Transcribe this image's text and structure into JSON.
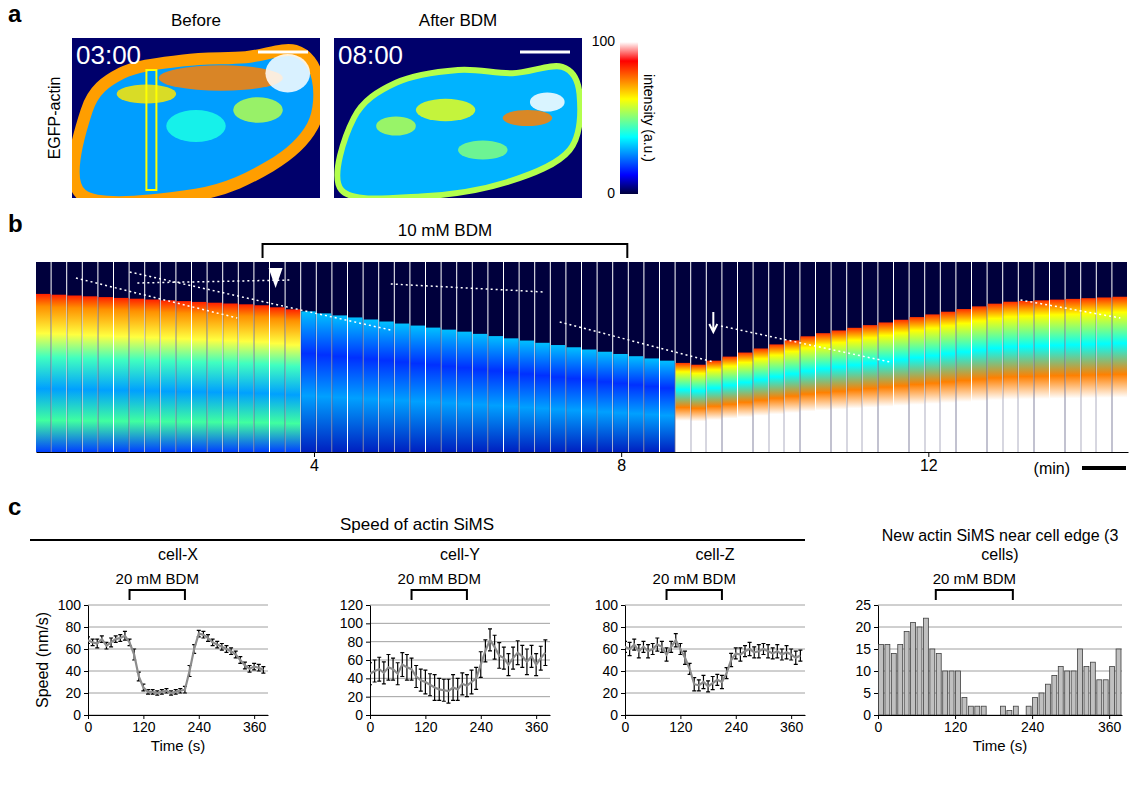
{
  "chart_data": [
    {
      "type": "image",
      "panel_label": "a",
      "ylabel": "EGFP-actin",
      "images": [
        {
          "title": "Before",
          "timestamp": "03:00"
        },
        {
          "title": "After BDM",
          "timestamp": "08:00"
        }
      ],
      "colorbar": {
        "label": "intensity (a.u.)",
        "range": [
          0,
          100
        ],
        "ticks": [
          0,
          100
        ]
      }
    },
    {
      "type": "kymograph",
      "panel_label": "b",
      "xlim": [
        0.38,
        14.6
      ],
      "xticks": [
        4,
        8,
        12
      ],
      "xlabel": "(min)",
      "annotations": [
        {
          "text": "10 mM BDM",
          "x": [
            3.33,
            8.08
          ]
        }
      ]
    },
    {
      "type": "line",
      "panel_label": "c",
      "supertitle": "Speed of actin SiMS",
      "title": "cell-X",
      "xlabel": "Time (s)",
      "ylabel": "Speed (nm/s)",
      "x": [
        0,
        10,
        20,
        30,
        40,
        50,
        60,
        70,
        80,
        90,
        100,
        110,
        120,
        130,
        140,
        150,
        160,
        170,
        180,
        190,
        200,
        210,
        220,
        230,
        240,
        250,
        260,
        270,
        280,
        290,
        300,
        310,
        320,
        330,
        340,
        350,
        360,
        370,
        380
      ],
      "values": [
        68,
        66,
        65,
        69,
        63,
        66,
        69,
        70,
        72,
        66,
        55,
        35,
        25,
        21,
        21,
        20,
        21,
        22,
        20,
        21,
        22,
        23,
        40,
        60,
        74,
        73,
        70,
        66,
        64,
        62,
        60,
        58,
        55,
        50,
        45,
        42,
        44,
        43,
        41
      ],
      "errors": [
        3,
        3,
        4,
        3,
        3,
        4,
        3,
        3,
        4,
        3,
        5,
        4,
        3,
        2,
        2,
        2,
        2,
        2,
        2,
        2,
        2,
        3,
        5,
        4,
        3,
        3,
        3,
        3,
        3,
        3,
        3,
        3,
        3,
        3,
        3,
        3,
        3,
        3,
        3
      ],
      "color": "#8c8c8c",
      "xlim": [
        0,
        390
      ],
      "xticks": [
        0,
        120,
        240,
        360
      ],
      "ylim": [
        0,
        100
      ],
      "yticks": [
        0,
        20,
        40,
        60,
        80,
        100
      ],
      "grid": true,
      "annotations": [
        {
          "text": "20 mM BDM",
          "x": [
            90,
            210
          ]
        }
      ]
    },
    {
      "type": "line",
      "title": "cell-Y",
      "x": [
        0,
        10,
        20,
        30,
        40,
        50,
        60,
        70,
        80,
        90,
        100,
        110,
        120,
        130,
        140,
        150,
        160,
        170,
        180,
        190,
        200,
        210,
        220,
        230,
        240,
        250,
        260,
        270,
        280,
        290,
        300,
        310,
        320,
        330,
        340,
        350,
        360,
        370,
        380
      ],
      "values": [
        45,
        48,
        50,
        46,
        52,
        50,
        45,
        55,
        52,
        50,
        42,
        38,
        36,
        33,
        30,
        28,
        27,
        26,
        30,
        28,
        34,
        32,
        36,
        40,
        55,
        70,
        82,
        74,
        65,
        62,
        55,
        62,
        68,
        64,
        58,
        64,
        55,
        62,
        68
      ],
      "errors": [
        12,
        12,
        13,
        12,
        14,
        12,
        12,
        13,
        14,
        12,
        12,
        12,
        13,
        12,
        14,
        12,
        12,
        13,
        14,
        12,
        12,
        12,
        13,
        12,
        14,
        12,
        12,
        13,
        14,
        12,
        12,
        12,
        13,
        12,
        14,
        12,
        12,
        13,
        14
      ],
      "color": "#8c8c8c",
      "xlim": [
        0,
        390
      ],
      "xticks": [
        0,
        120,
        240,
        360
      ],
      "ylim": [
        0,
        120
      ],
      "yticks": [
        0,
        20,
        40,
        60,
        80,
        100,
        120
      ],
      "grid": true,
      "annotations": [
        {
          "text": "20 mM BDM",
          "x": [
            90,
            210
          ]
        }
      ]
    },
    {
      "type": "line",
      "title": "cell-Z",
      "x": [
        0,
        10,
        20,
        30,
        40,
        50,
        60,
        70,
        80,
        90,
        100,
        110,
        120,
        130,
        140,
        150,
        160,
        170,
        180,
        190,
        200,
        210,
        220,
        230,
        240,
        250,
        260,
        270,
        280,
        290,
        300,
        310,
        320,
        330,
        340,
        350,
        360,
        370,
        380
      ],
      "values": [
        62,
        60,
        64,
        58,
        62,
        58,
        60,
        64,
        62,
        55,
        62,
        68,
        60,
        52,
        42,
        28,
        27,
        30,
        26,
        29,
        32,
        30,
        38,
        50,
        56,
        55,
        58,
        60,
        57,
        58,
        60,
        58,
        56,
        58,
        55,
        57,
        55,
        52,
        54
      ],
      "errors": [
        5,
        6,
        5,
        6,
        5,
        6,
        5,
        6,
        5,
        6,
        5,
        6,
        5,
        6,
        5,
        6,
        5,
        6,
        5,
        6,
        5,
        6,
        5,
        6,
        5,
        6,
        5,
        6,
        5,
        6,
        5,
        6,
        5,
        6,
        5,
        6,
        5,
        6,
        5
      ],
      "color": "#8c8c8c",
      "xlim": [
        0,
        390
      ],
      "xticks": [
        0,
        120,
        240,
        360
      ],
      "ylim": [
        0,
        100
      ],
      "yticks": [
        0,
        20,
        40,
        60,
        80,
        100
      ],
      "grid": true,
      "annotations": [
        {
          "text": "20 mM BDM",
          "x": [
            90,
            210
          ]
        }
      ]
    },
    {
      "type": "bar",
      "title": "New actin SiMS near cell edge (3 cells)",
      "xlabel": "Time (s)",
      "x": [
        0,
        10,
        20,
        30,
        40,
        50,
        60,
        70,
        80,
        90,
        100,
        110,
        120,
        130,
        140,
        150,
        160,
        170,
        180,
        190,
        200,
        210,
        220,
        230,
        240,
        250,
        260,
        270,
        280,
        290,
        300,
        310,
        320,
        330,
        340,
        350,
        360,
        370
      ],
      "values": [
        16,
        16,
        14,
        16,
        19,
        21,
        20,
        22,
        15,
        14,
        10,
        10,
        10,
        4,
        2,
        2,
        2,
        0,
        0,
        2,
        1,
        2,
        0,
        2,
        4,
        5,
        7,
        9,
        11,
        10,
        10,
        15,
        11,
        12,
        8,
        8,
        11,
        15
      ],
      "color": "#c0c0c0",
      "xlim": [
        0,
        380
      ],
      "xticks": [
        0,
        120,
        240,
        360
      ],
      "ylim": [
        0,
        25
      ],
      "yticks": [
        0,
        5,
        10,
        15,
        20,
        25
      ],
      "grid": true,
      "annotations": [
        {
          "text": "20 mM BDM",
          "x": [
            90,
            210
          ]
        }
      ]
    }
  ]
}
